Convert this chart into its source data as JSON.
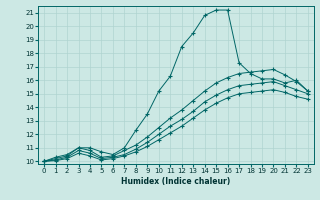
{
  "xlabel": "Humidex (Indice chaleur)",
  "bg_color": "#cce8e4",
  "grid_color": "#b0d4d0",
  "line_color": "#006666",
  "xlim": [
    -0.5,
    23.5
  ],
  "ylim": [
    9.8,
    21.5
  ],
  "xticks": [
    0,
    1,
    2,
    3,
    4,
    5,
    6,
    7,
    8,
    9,
    10,
    11,
    12,
    13,
    14,
    15,
    16,
    17,
    18,
    19,
    20,
    21,
    22,
    23
  ],
  "yticks": [
    10,
    11,
    12,
    13,
    14,
    15,
    16,
    17,
    18,
    19,
    20,
    21
  ],
  "lines": [
    {
      "x": [
        0,
        1,
        2,
        3,
        4,
        5,
        6,
        7,
        8,
        9,
        10,
        11,
        12,
        13,
        14,
        15,
        16,
        17,
        18,
        19,
        20,
        21,
        22,
        23
      ],
      "y": [
        10,
        10.3,
        10.5,
        11.0,
        11.0,
        10.7,
        10.5,
        11.0,
        12.3,
        13.5,
        15.2,
        16.3,
        18.5,
        19.5,
        20.8,
        21.2,
        21.2,
        17.3,
        16.5,
        16.1,
        16.1,
        15.8,
        16.0,
        15.2
      ]
    },
    {
      "x": [
        0,
        1,
        2,
        3,
        4,
        5,
        6,
        7,
        8,
        9,
        10,
        11,
        12,
        13,
        14,
        15,
        16,
        17,
        18,
        19,
        20,
        21,
        22,
        23
      ],
      "y": [
        10,
        10.2,
        10.4,
        11.0,
        10.8,
        10.3,
        10.4,
        10.8,
        11.2,
        11.8,
        12.5,
        13.2,
        13.8,
        14.5,
        15.2,
        15.8,
        16.2,
        16.5,
        16.6,
        16.7,
        16.8,
        16.4,
        15.9,
        15.2
      ]
    },
    {
      "x": [
        0,
        1,
        2,
        3,
        4,
        5,
        6,
        7,
        8,
        9,
        10,
        11,
        12,
        13,
        14,
        15,
        16,
        17,
        18,
        19,
        20,
        21,
        22,
        23
      ],
      "y": [
        10,
        10.1,
        10.3,
        10.8,
        10.6,
        10.2,
        10.3,
        10.5,
        10.9,
        11.4,
        12.0,
        12.6,
        13.1,
        13.7,
        14.4,
        14.9,
        15.3,
        15.6,
        15.7,
        15.8,
        15.9,
        15.6,
        15.3,
        15.0
      ]
    },
    {
      "x": [
        0,
        1,
        2,
        3,
        4,
        5,
        6,
        7,
        8,
        9,
        10,
        11,
        12,
        13,
        14,
        15,
        16,
        17,
        18,
        19,
        20,
        21,
        22,
        23
      ],
      "y": [
        10,
        10.05,
        10.2,
        10.6,
        10.4,
        10.1,
        10.2,
        10.4,
        10.7,
        11.1,
        11.6,
        12.1,
        12.6,
        13.2,
        13.8,
        14.3,
        14.7,
        15.0,
        15.1,
        15.2,
        15.3,
        15.1,
        14.8,
        14.6
      ]
    }
  ]
}
